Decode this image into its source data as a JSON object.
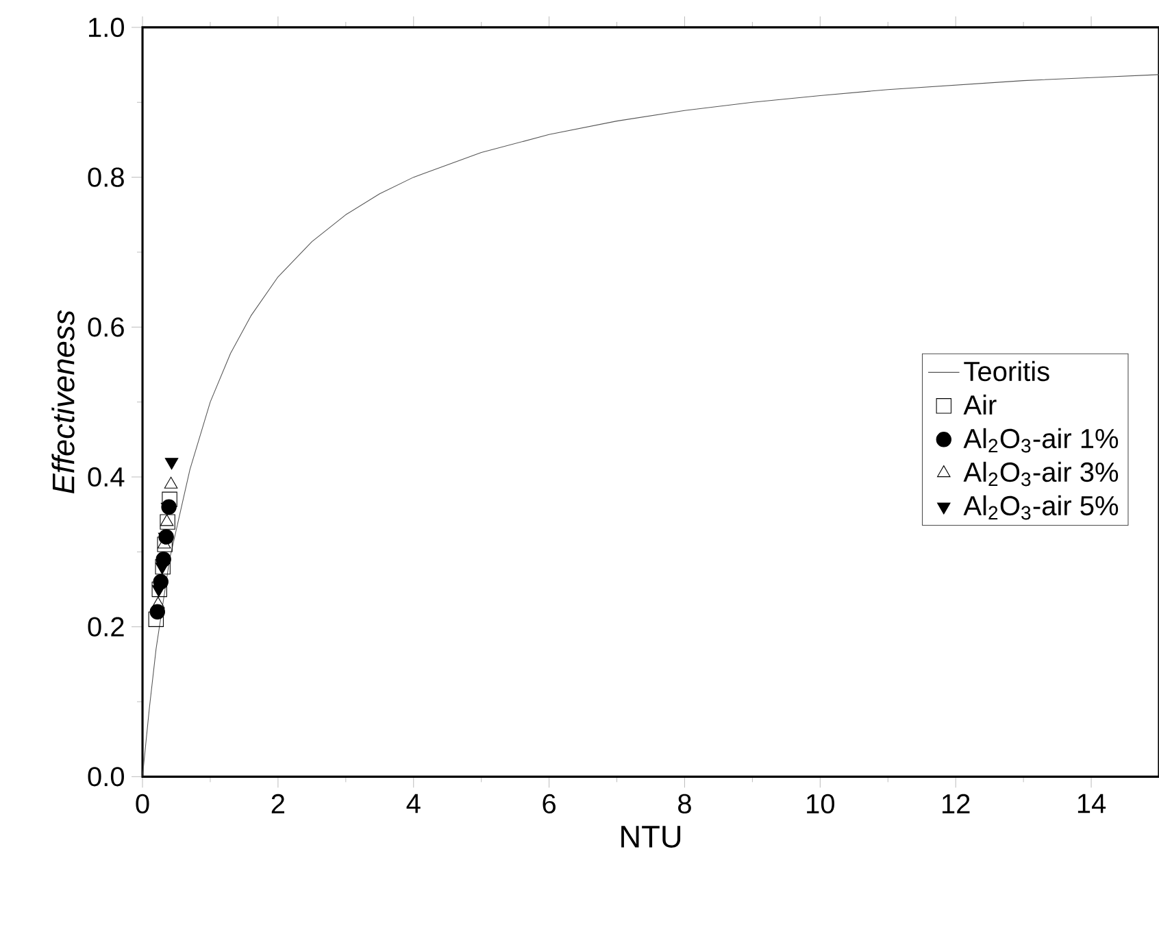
{
  "chart_data": {
    "type": "scatter",
    "xlabel": "NTU",
    "ylabel": "Effectiveness",
    "xlim": [
      0,
      15
    ],
    "ylim": [
      0,
      1.0
    ],
    "xticks": [
      0,
      2,
      4,
      6,
      8,
      10,
      12,
      14
    ],
    "yticks": [
      {
        "value": 0,
        "label": "0.0"
      },
      {
        "value": 0.2,
        "label": "0.2"
      },
      {
        "value": 0.4,
        "label": "0.4"
      },
      {
        "value": 0.6,
        "label": "0.6"
      },
      {
        "value": 0.8,
        "label": "0.8"
      },
      {
        "value": 1.0,
        "label": "1.0"
      }
    ],
    "legend": "right",
    "grid": false,
    "series": [
      {
        "name": "Teoritis",
        "type": "line",
        "color": "#555555",
        "marker": "none",
        "line_style": "solid",
        "x": [
          0,
          0.1,
          0.2,
          0.3,
          0.4,
          0.5,
          0.7,
          1,
          1.3,
          1.6,
          2,
          2.5,
          3,
          3.5,
          4,
          5,
          6,
          7,
          8,
          9,
          10,
          11,
          12,
          13,
          14,
          15
        ],
        "values": [
          0,
          0.09,
          0.17,
          0.23,
          0.29,
          0.33,
          0.41,
          0.5,
          0.565,
          0.615,
          0.667,
          0.714,
          0.75,
          0.778,
          0.8,
          0.833,
          0.857,
          0.875,
          0.889,
          0.9,
          0.909,
          0.917,
          0.923,
          0.929,
          0.933,
          0.937
        ]
      },
      {
        "name": "Air",
        "color": "#000000",
        "marker": "square",
        "x": [
          0.2,
          0.25,
          0.3,
          0.33,
          0.37,
          0.4
        ],
        "values": [
          0.21,
          0.25,
          0.28,
          0.31,
          0.34,
          0.37
        ]
      },
      {
        "name": "Al$_{2}$O$_{3}$-air 1%",
        "color": "#000000",
        "marker": "circle",
        "x": [
          0.22,
          0.27,
          0.31,
          0.35,
          0.39
        ],
        "values": [
          0.22,
          0.26,
          0.29,
          0.32,
          0.36
        ]
      },
      {
        "name": "Al$_{2}$O$_{3}$-air 3%",
        "color": "#000000",
        "marker": "triangle",
        "x": [
          0.23,
          0.28,
          0.32,
          0.36,
          0.42
        ],
        "values": [
          0.23,
          null,
          0.31,
          0.34,
          0.39
        ]
      },
      {
        "name": "Al$_{2}$O$_{3}$-air 5%",
        "color": "#000000",
        "marker": "triangle-down",
        "x": [
          0.24,
          0.29,
          0.33,
          0.37,
          0.43
        ],
        "values": [
          0.25,
          0.28,
          0.32,
          0.36,
          0.42
        ]
      }
    ]
  }
}
